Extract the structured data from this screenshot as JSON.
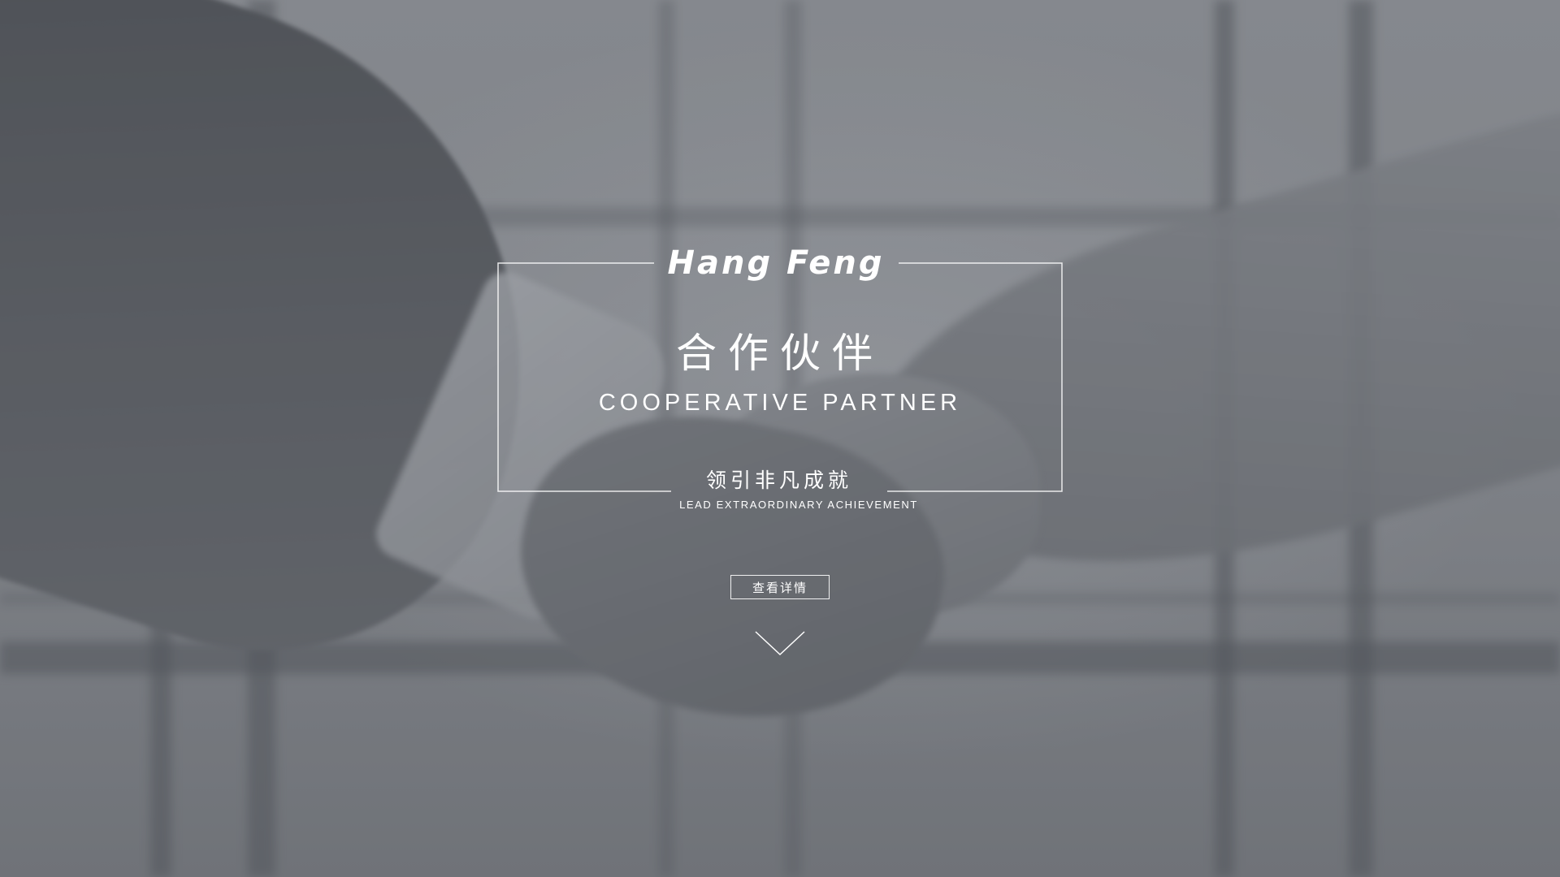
{
  "hero": {
    "logo_text": "Hang Feng",
    "title_cn": "合作伙伴",
    "title_en": "COOPERATIVE PARTNER",
    "slogan_cn": "领引非凡成就",
    "slogan_en": "LEAD EXTRAORDINARY ACHIEVEMENT",
    "detail_button_label": "查看详情",
    "scroll_icon": "chevron-down-icon",
    "background_image": "handshake-photo"
  },
  "colors": {
    "text": "#ffffff",
    "overlay": "#7d8085"
  }
}
